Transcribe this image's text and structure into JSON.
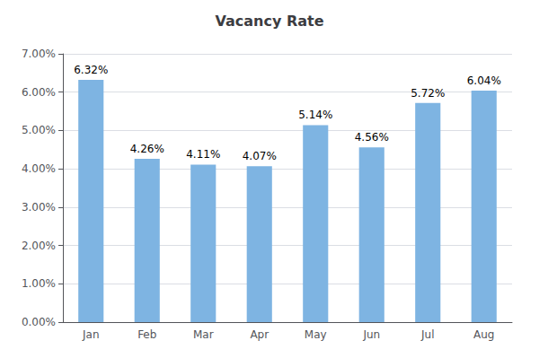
{
  "chart_data": {
    "type": "bar",
    "title": "Vacancy Rate",
    "categories": [
      "Jan",
      "Feb",
      "Mar",
      "Apr",
      "May",
      "Jun",
      "Jul",
      "Aug"
    ],
    "values": [
      6.32,
      4.26,
      4.11,
      4.07,
      5.14,
      4.56,
      5.72,
      6.04
    ],
    "value_labels": [
      "6.32%",
      "4.26%",
      "4.11%",
      "4.07%",
      "5.14%",
      "4.56%",
      "5.72%",
      "6.04%"
    ],
    "color": "#7eb4e2",
    "ylim": [
      0,
      7.0
    ],
    "yticks": [
      {
        "value": 0.0,
        "label": "0.00%"
      },
      {
        "value": 1.0,
        "label": "1.00%"
      },
      {
        "value": 2.0,
        "label": "2.00%"
      },
      {
        "value": 3.0,
        "label": "3.00%"
      },
      {
        "value": 4.0,
        "label": "4.00%"
      },
      {
        "value": 5.0,
        "label": "5.00%"
      },
      {
        "value": 6.0,
        "label": "6.00%"
      },
      {
        "value": 7.0,
        "label": "7.00%"
      }
    ],
    "grid": true,
    "data_labels": true
  }
}
